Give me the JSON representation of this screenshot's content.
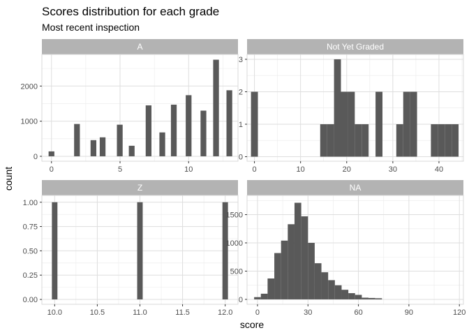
{
  "title": "Scores distribution for each grade",
  "subtitle": "Most recent inspection",
  "chart_data": {
    "type": "bar",
    "title": "Scores distribution for each grade",
    "subtitle": "Most recent inspection",
    "xlabel": "score",
    "ylabel": "count",
    "grid": true,
    "bar_color": "#595959",
    "strip_color": "#b3b3b3",
    "panels": [
      {
        "name": "A",
        "xlim": [
          -0.7,
          13.6
        ],
        "ylim": [
          -140,
          2900
        ],
        "x_ticks": [
          0,
          5,
          10
        ],
        "x_tick_labels": [
          "0",
          "5",
          "10"
        ],
        "y_ticks": [
          0,
          1000,
          2000
        ],
        "y_tick_labels": [
          "0",
          "1000",
          "2000"
        ],
        "bin_width": 0.42,
        "x": [
          0,
          1.86,
          3.06,
          3.73,
          4.98,
          5.85,
          7.08,
          8.08,
          8.92,
          10.0,
          11.08,
          12.0,
          12.97
        ],
        "values": [
          140,
          920,
          460,
          540,
          900,
          300,
          1450,
          680,
          1470,
          1740,
          1300,
          2750,
          1880
        ]
      },
      {
        "name": "Not Yet Graded",
        "xlim": [
          -1.6,
          45.3
        ],
        "ylim": [
          -0.14,
          3.15
        ],
        "x_ticks": [
          0,
          10,
          20,
          30,
          40
        ],
        "x_tick_labels": [
          "0",
          "10",
          "20",
          "30",
          "40"
        ],
        "y_ticks": [
          0,
          1,
          2,
          3
        ],
        "y_tick_labels": [
          "0",
          "1",
          "2",
          "3"
        ],
        "bin_width": 1.5,
        "x": [
          0,
          15,
          16.5,
          18,
          19.5,
          21,
          22.5,
          24,
          27,
          31.5,
          33,
          34.5,
          39,
          40.5,
          42,
          43.5
        ],
        "values": [
          2,
          1,
          1,
          3,
          2,
          2,
          1,
          1,
          2,
          1,
          2,
          2,
          1,
          1,
          1,
          1
        ]
      },
      {
        "name": "Z",
        "xlim": [
          9.85,
          12.15
        ],
        "ylim": [
          -0.05,
          1.07
        ],
        "x_ticks": [
          10.0,
          10.5,
          11.0,
          11.5,
          12.0
        ],
        "x_tick_labels": [
          "10.0",
          "10.5",
          "11.0",
          "11.5",
          "12.0"
        ],
        "y_ticks": [
          0,
          0.25,
          0.5,
          0.75,
          1.0
        ],
        "y_tick_labels": [
          "0.00",
          "0.25",
          "0.50",
          "0.75",
          "1.00"
        ],
        "bin_width": 0.065,
        "x": [
          10.0,
          11.0,
          12.0
        ],
        "values": [
          1,
          1,
          1
        ]
      },
      {
        "name": "NA",
        "xlim": [
          -6.2,
          122.4
        ],
        "ylim": [
          -87,
          1840
        ],
        "x_ticks": [
          0,
          30,
          60,
          90,
          120
        ],
        "x_tick_labels": [
          "0",
          "30",
          "60",
          "90",
          "120"
        ],
        "y_ticks": [
          0,
          500,
          1000,
          1500
        ],
        "y_tick_labels": [
          "0",
          "500",
          "1000",
          "1500"
        ],
        "bin_width": 4,
        "x": [
          0,
          4,
          8,
          12,
          16,
          20,
          24,
          28,
          32,
          36,
          40,
          44,
          48,
          52,
          56,
          60,
          64,
          68,
          72
        ],
        "values": [
          40,
          100,
          370,
          820,
          1040,
          1330,
          1710,
          1470,
          1000,
          640,
          480,
          340,
          250,
          170,
          110,
          80,
          30,
          25,
          20
        ]
      }
    ]
  }
}
